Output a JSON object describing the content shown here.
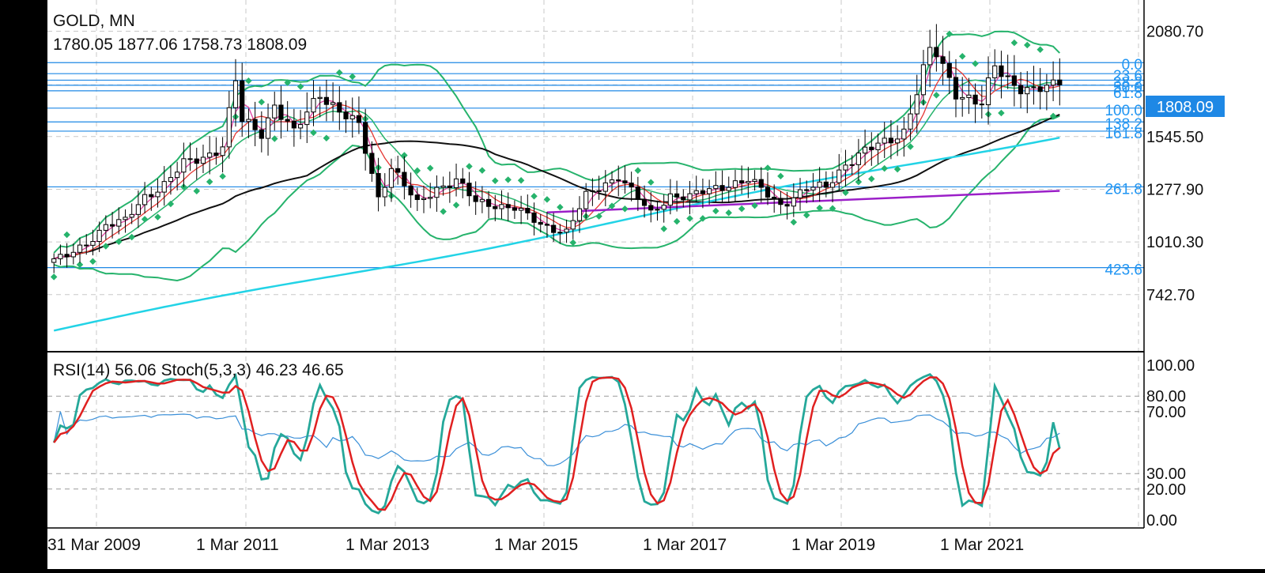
{
  "header": {
    "symbol": "GOLD, MN",
    "ohlc": "1780.05 1877.06 1758.73 1808.09"
  },
  "price_badge": "1808.09",
  "rsi_header": "RSI(14) 56.06 Stoch(5,3,3) 46.23 46.65",
  "fib_labels": [
    "0.0",
    "23.6",
    "38.2",
    "50.0",
    "61.8",
    "100.0",
    "138.2",
    "161.8",
    "261.8",
    "423.6"
  ],
  "colors": {
    "background": "#ffffff",
    "frame": "#000000",
    "grid": "#c8c8c8",
    "fib": "#1e88e5",
    "fib_label": "#2196f3",
    "badge": "#1e88e5",
    "bollinger": "#26b36c",
    "sar": "#26b36c",
    "ma_black": "#111111",
    "ma_cyan": "#22d3e6",
    "trendline": "#9b1fc8",
    "ma_red": "#e53935",
    "ma_pink": "#e040a0",
    "stoch_main": "#25a89a",
    "stoch_signal": "#e02020",
    "rsi": "#3a8fd8"
  },
  "chart_data": [
    {
      "type": "candlestick",
      "title": "GOLD, MN",
      "ohlc_last": [
        1780.05,
        1877.06,
        1758.73,
        1808.09
      ],
      "y_ticks": [
        "2080.70",
        "1808.09",
        "1545.50",
        "1277.90",
        "1010.30",
        "742.70"
      ],
      "x_ticks": [
        "31 Mar 2009",
        "1 Mar 2011",
        "1 Mar 2013",
        "1 Mar 2015",
        "1 Mar 2017",
        "1 Mar 2019",
        "1 Mar 2021"
      ],
      "x_range": [
        "2009-03",
        "2021-04"
      ],
      "y_range": [
        473,
        2215
      ],
      "fibonacci_levels": [
        {
          "label": "0.0",
          "price": 1921
        },
        {
          "label": "23.6",
          "price": 1865
        },
        {
          "label": "38.2",
          "price": 1832
        },
        {
          "label": "50.0",
          "price": 1806
        },
        {
          "label": "61.8",
          "price": 1778
        },
        {
          "label": "100.0",
          "price": 1690
        },
        {
          "label": "138.2",
          "price": 1620
        },
        {
          "label": "161.8",
          "price": 1573
        },
        {
          "label": "261.8",
          "price": 1290
        },
        {
          "label": "423.6",
          "price": 880
        }
      ],
      "close_series": [
        {
          "t": "2009-03",
          "c": 920
        },
        {
          "t": "2009-06",
          "c": 935
        },
        {
          "t": "2009-09",
          "c": 1000
        },
        {
          "t": "2009-12",
          "c": 1100
        },
        {
          "t": "2010-03",
          "c": 1115
        },
        {
          "t": "2010-06",
          "c": 1240
        },
        {
          "t": "2010-09",
          "c": 1305
        },
        {
          "t": "2010-12",
          "c": 1405
        },
        {
          "t": "2011-03",
          "c": 1440
        },
        {
          "t": "2011-06",
          "c": 1500
        },
        {
          "t": "2011-08",
          "c": 1830
        },
        {
          "t": "2011-09",
          "c": 1620
        },
        {
          "t": "2011-12",
          "c": 1565
        },
        {
          "t": "2012-02",
          "c": 1710
        },
        {
          "t": "2012-05",
          "c": 1560
        },
        {
          "t": "2012-09",
          "c": 1770
        },
        {
          "t": "2012-12",
          "c": 1675
        },
        {
          "t": "2013-03",
          "c": 1595
        },
        {
          "t": "2013-06",
          "c": 1235
        },
        {
          "t": "2013-08",
          "c": 1395
        },
        {
          "t": "2013-12",
          "c": 1200
        },
        {
          "t": "2014-03",
          "c": 1285
        },
        {
          "t": "2014-06",
          "c": 1325
        },
        {
          "t": "2014-09",
          "c": 1210
        },
        {
          "t": "2014-12",
          "c": 1200
        },
        {
          "t": "2015-03",
          "c": 1185
        },
        {
          "t": "2015-07",
          "c": 1095
        },
        {
          "t": "2015-11",
          "c": 1065
        },
        {
          "t": "2016-02",
          "c": 1240
        },
        {
          "t": "2016-07",
          "c": 1350
        },
        {
          "t": "2016-12",
          "c": 1150
        },
        {
          "t": "2017-03",
          "c": 1250
        },
        {
          "t": "2017-06",
          "c": 1240
        },
        {
          "t": "2017-12",
          "c": 1305
        },
        {
          "t": "2018-03",
          "c": 1325
        },
        {
          "t": "2018-08",
          "c": 1200
        },
        {
          "t": "2018-12",
          "c": 1280
        },
        {
          "t": "2019-03",
          "c": 1290
        },
        {
          "t": "2019-06",
          "c": 1410
        },
        {
          "t": "2019-09",
          "c": 1470
        },
        {
          "t": "2019-12",
          "c": 1515
        },
        {
          "t": "2020-03",
          "c": 1575
        },
        {
          "t": "2020-07",
          "c": 1975
        },
        {
          "t": "2020-08",
          "c": 1965
        },
        {
          "t": "2020-11",
          "c": 1775
        },
        {
          "t": "2021-03",
          "c": 1705
        },
        {
          "t": "2021-05",
          "c": 1900
        },
        {
          "t": "2021-08",
          "c": 1815
        },
        {
          "t": "2021-11",
          "c": 1775
        },
        {
          "t": "2022-03",
          "c": 1808.09
        }
      ]
    },
    {
      "type": "line",
      "title": "RSI(14) 56.06 Stoch(5,3,3) 46.23 46.65",
      "y_ticks": [
        "100.00",
        "80.00",
        "70.00",
        "30.00",
        "20.00",
        "0.00"
      ],
      "y_range": [
        0,
        100
      ],
      "levels": [
        20,
        30,
        70,
        80
      ],
      "rsi_last": 56.06,
      "stoch_main_last": 46.23,
      "stoch_signal_last": 46.65
    }
  ]
}
